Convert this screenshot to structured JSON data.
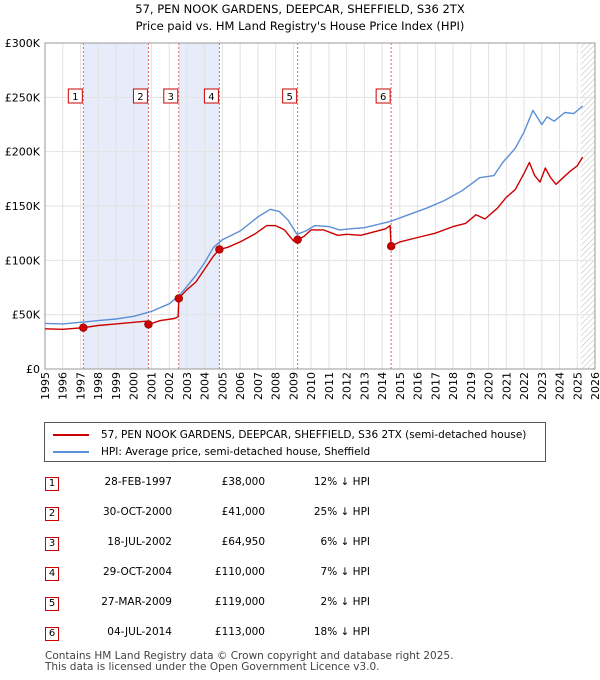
{
  "chart_data": {
    "type": "line",
    "title": "57, PEN NOOK GARDENS, DEEPCAR, SHEFFIELD, S36 2TX",
    "subtitle": "Price paid vs. HM Land Registry's House Price Index (HPI)",
    "xlabel": "",
    "ylabel": "",
    "xlim": [
      1995,
      2026
    ],
    "ylim": [
      0,
      300000
    ],
    "x_ticks": [
      "1995",
      "1996",
      "1997",
      "1998",
      "1999",
      "2000",
      "2001",
      "2002",
      "2003",
      "2004",
      "2005",
      "2006",
      "2007",
      "2008",
      "2009",
      "2010",
      "2011",
      "2012",
      "2013",
      "2014",
      "2015",
      "2016",
      "2017",
      "2018",
      "2019",
      "2020",
      "2021",
      "2022",
      "2023",
      "2024",
      "2025",
      "2026"
    ],
    "y_ticks": [
      {
        "value": 0,
        "label": "£0"
      },
      {
        "value": 50000,
        "label": "£50K"
      },
      {
        "value": 100000,
        "label": "£100K"
      },
      {
        "value": 150000,
        "label": "£150K"
      },
      {
        "value": 200000,
        "label": "£200K"
      },
      {
        "value": 250000,
        "label": "£250K"
      },
      {
        "value": 300000,
        "label": "£300K"
      }
    ],
    "grid": true,
    "shaded_spans": [
      [
        1997.16,
        2000.83
      ],
      [
        2002.54,
        2004.83
      ]
    ],
    "future_hatch_from": 2025.2,
    "series": [
      {
        "name": "57, PEN NOOK GARDENS, DEEPCAR, SHEFFIELD, S36 2TX (semi-detached house)",
        "color": "#cc0000",
        "points": [
          [
            1995.0,
            37000
          ],
          [
            1996.0,
            36500
          ],
          [
            1997.16,
            38000
          ],
          [
            1998.0,
            40000
          ],
          [
            1999.0,
            41500
          ],
          [
            2000.0,
            43000
          ],
          [
            2000.7,
            44000
          ],
          [
            2000.83,
            41000
          ],
          [
            2001.5,
            44500
          ],
          [
            2002.3,
            46500
          ],
          [
            2002.5,
            48000
          ],
          [
            2002.54,
            64950
          ],
          [
            2003.0,
            73000
          ],
          [
            2003.5,
            80000
          ],
          [
            2004.0,
            92000
          ],
          [
            2004.5,
            104000
          ],
          [
            2004.83,
            110000
          ],
          [
            2005.3,
            112000
          ],
          [
            2006.0,
            117000
          ],
          [
            2006.8,
            124000
          ],
          [
            2007.5,
            132000
          ],
          [
            2008.0,
            132000
          ],
          [
            2008.5,
            128000
          ],
          [
            2009.0,
            118000
          ],
          [
            2009.24,
            119000
          ],
          [
            2009.6,
            122000
          ],
          [
            2010.0,
            128000
          ],
          [
            2010.7,
            128000
          ],
          [
            2011.5,
            123000
          ],
          [
            2012.0,
            124000
          ],
          [
            2012.8,
            123000
          ],
          [
            2013.5,
            126000
          ],
          [
            2014.2,
            129000
          ],
          [
            2014.45,
            132000
          ],
          [
            2014.51,
            113000
          ],
          [
            2015.0,
            117000
          ],
          [
            2016.0,
            121000
          ],
          [
            2017.0,
            125000
          ],
          [
            2018.0,
            131000
          ],
          [
            2018.7,
            134000
          ],
          [
            2019.3,
            142000
          ],
          [
            2019.8,
            138000
          ],
          [
            2020.5,
            148000
          ],
          [
            2021.0,
            158000
          ],
          [
            2021.5,
            165000
          ],
          [
            2022.0,
            180000
          ],
          [
            2022.3,
            190000
          ],
          [
            2022.6,
            178000
          ],
          [
            2022.9,
            172000
          ],
          [
            2023.2,
            185000
          ],
          [
            2023.5,
            176000
          ],
          [
            2023.8,
            170000
          ],
          [
            2024.2,
            176000
          ],
          [
            2024.6,
            182000
          ],
          [
            2025.0,
            187000
          ],
          [
            2025.3,
            195000
          ]
        ]
      },
      {
        "name": "HPI: Average price, semi-detached house, Sheffield",
        "color": "#5b8fd6",
        "points": [
          [
            1995.0,
            42000
          ],
          [
            1996.0,
            41500
          ],
          [
            1997.0,
            43000
          ],
          [
            1998.0,
            44500
          ],
          [
            1999.0,
            46000
          ],
          [
            2000.0,
            48500
          ],
          [
            2001.0,
            53000
          ],
          [
            2002.0,
            60000
          ],
          [
            2002.6,
            68000
          ],
          [
            2003.0,
            76000
          ],
          [
            2003.5,
            86000
          ],
          [
            2004.0,
            98000
          ],
          [
            2004.5,
            112000
          ],
          [
            2005.0,
            119000
          ],
          [
            2006.0,
            127000
          ],
          [
            2007.0,
            140000
          ],
          [
            2007.7,
            147000
          ],
          [
            2008.2,
            145000
          ],
          [
            2008.7,
            137000
          ],
          [
            2009.2,
            124000
          ],
          [
            2009.7,
            127000
          ],
          [
            2010.2,
            132000
          ],
          [
            2011.0,
            131000
          ],
          [
            2011.6,
            128000
          ],
          [
            2012.2,
            129000
          ],
          [
            2013.0,
            130000
          ],
          [
            2014.0,
            134000
          ],
          [
            2014.5,
            136000
          ],
          [
            2015.5,
            142000
          ],
          [
            2016.5,
            148000
          ],
          [
            2017.5,
            155000
          ],
          [
            2018.5,
            164000
          ],
          [
            2019.5,
            176000
          ],
          [
            2020.3,
            178000
          ],
          [
            2020.8,
            190000
          ],
          [
            2021.5,
            203000
          ],
          [
            2022.0,
            218000
          ],
          [
            2022.5,
            238000
          ],
          [
            2023.0,
            225000
          ],
          [
            2023.3,
            232000
          ],
          [
            2023.7,
            228000
          ],
          [
            2024.3,
            236000
          ],
          [
            2024.8,
            235000
          ],
          [
            2025.3,
            242000
          ]
        ]
      }
    ],
    "sales": [
      {
        "num": "1",
        "x": 1997.16,
        "price": 38000
      },
      {
        "num": "2",
        "x": 2000.83,
        "price": 41000
      },
      {
        "num": "3",
        "x": 2002.54,
        "price": 64950
      },
      {
        "num": "4",
        "x": 2004.83,
        "price": 110000
      },
      {
        "num": "5",
        "x": 2009.24,
        "price": 119000
      },
      {
        "num": "6",
        "x": 2014.51,
        "price": 113000
      }
    ]
  },
  "legend": {
    "property_label": "57, PEN NOOK GARDENS, DEEPCAR, SHEFFIELD, S36 2TX (semi-detached house)",
    "hpi_label": "HPI: Average price, semi-detached house, Sheffield",
    "property_color": "#cc0000",
    "hpi_color": "#5b8fd6"
  },
  "sales_table": [
    {
      "num": "1",
      "date": "28-FEB-1997",
      "price": "£38,000",
      "hpi": "12% ↓ HPI"
    },
    {
      "num": "2",
      "date": "30-OCT-2000",
      "price": "£41,000",
      "hpi": "25% ↓ HPI"
    },
    {
      "num": "3",
      "date": "18-JUL-2002",
      "price": "£64,950",
      "hpi": "6% ↓ HPI"
    },
    {
      "num": "4",
      "date": "29-OCT-2004",
      "price": "£110,000",
      "hpi": "7% ↓ HPI"
    },
    {
      "num": "5",
      "date": "27-MAR-2009",
      "price": "£119,000",
      "hpi": "2% ↓ HPI"
    },
    {
      "num": "6",
      "date": "04-JUL-2014",
      "price": "£113,000",
      "hpi": "18% ↓ HPI"
    }
  ],
  "footer": {
    "line1": "Contains HM Land Registry data © Crown copyright and database right 2025.",
    "line2": "This data is licensed under the Open Government Licence v3.0."
  }
}
